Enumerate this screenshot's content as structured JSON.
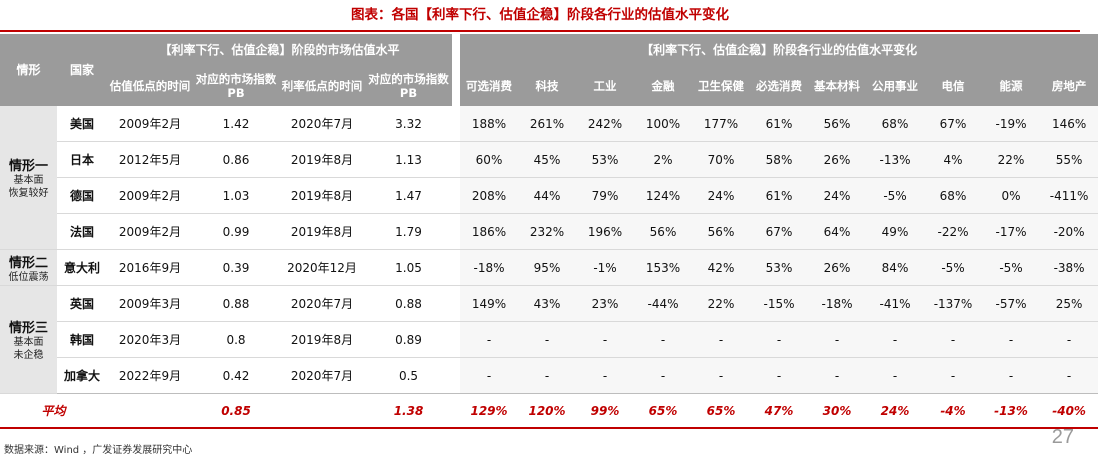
{
  "title": "图表：各国【利率下行、估值企稳】阶段各行业的估值水平变化",
  "header": {
    "scenario": "情形",
    "country": "国家",
    "group_market": "【利率下行、估值企稳】阶段的市场估值水平",
    "group_industry": "【利率下行、估值企稳】阶段各行业的估值水平变化",
    "market_cols": [
      "估值低点的时间",
      "对应的市场指数PB",
      "利率低点的时间",
      "对应的市场指数PB"
    ],
    "industries": [
      "可选消费",
      "科技",
      "工业",
      "金融",
      "卫生保健",
      "必选消费",
      "基本材料",
      "公用事业",
      "电信",
      "能源",
      "房地产"
    ]
  },
  "scenarios": [
    {
      "name": "情形一",
      "desc": [
        "基本面",
        "恢复较好"
      ]
    },
    {
      "name": "情形二",
      "desc": [
        "低位震荡"
      ]
    },
    {
      "name": "情形三",
      "desc": [
        "基本面",
        "未企稳"
      ]
    }
  ],
  "rows": [
    {
      "country": "美国",
      "val_low": "2009年2月",
      "pb1": "1.42",
      "rate_low": "2020年7月",
      "pb2": "3.32",
      "values": [
        "188%",
        "261%",
        "242%",
        "100%",
        "177%",
        "61%",
        "56%",
        "68%",
        "67%",
        "-19%",
        "146%"
      ]
    },
    {
      "country": "日本",
      "val_low": "2012年5月",
      "pb1": "0.86",
      "rate_low": "2019年8月",
      "pb2": "1.13",
      "values": [
        "60%",
        "45%",
        "53%",
        "2%",
        "70%",
        "58%",
        "26%",
        "-13%",
        "4%",
        "22%",
        "55%"
      ]
    },
    {
      "country": "德国",
      "val_low": "2009年2月",
      "pb1": "1.03",
      "rate_low": "2019年8月",
      "pb2": "1.47",
      "values": [
        "208%",
        "44%",
        "79%",
        "124%",
        "24%",
        "61%",
        "24%",
        "-5%",
        "68%",
        "0%",
        "-411%"
      ]
    },
    {
      "country": "法国",
      "val_low": "2009年2月",
      "pb1": "0.99",
      "rate_low": "2019年8月",
      "pb2": "1.79",
      "values": [
        "186%",
        "232%",
        "196%",
        "56%",
        "56%",
        "67%",
        "64%",
        "49%",
        "-22%",
        "-17%",
        "-20%"
      ]
    },
    {
      "country": "意大利",
      "val_low": "2016年9月",
      "pb1": "0.39",
      "rate_low": "2020年12月",
      "pb2": "1.05",
      "values": [
        "-18%",
        "95%",
        "-1%",
        "153%",
        "42%",
        "53%",
        "26%",
        "84%",
        "-5%",
        "-5%",
        "-38%"
      ]
    },
    {
      "country": "英国",
      "val_low": "2009年3月",
      "pb1": "0.88",
      "rate_low": "2020年7月",
      "pb2": "0.88",
      "values": [
        "149%",
        "43%",
        "23%",
        "-44%",
        "22%",
        "-15%",
        "-18%",
        "-41%",
        "-137%",
        "-57%",
        "25%"
      ]
    },
    {
      "country": "韩国",
      "val_low": "2020年3月",
      "pb1": "0.8",
      "rate_low": "2019年8月",
      "pb2": "0.89",
      "values": [
        "-",
        "-",
        "-",
        "-",
        "-",
        "-",
        "-",
        "-",
        "-",
        "-",
        "-"
      ]
    },
    {
      "country": "加拿大",
      "val_low": "2022年9月",
      "pb1": "0.42",
      "rate_low": "2020年7月",
      "pb2": "0.5",
      "values": [
        "-",
        "-",
        "-",
        "-",
        "-",
        "-",
        "-",
        "-",
        "-",
        "-",
        "-"
      ]
    }
  ],
  "average": {
    "label": "平均",
    "pb1": "0.85",
    "pb2": "1.38",
    "values": [
      "129%",
      "120%",
      "99%",
      "65%",
      "65%",
      "47%",
      "30%",
      "24%",
      "-4%",
      "-13%",
      "-40%"
    ]
  },
  "footer": "数据来源：Wind ，广发证券发展研究中心",
  "page_number": "27"
}
